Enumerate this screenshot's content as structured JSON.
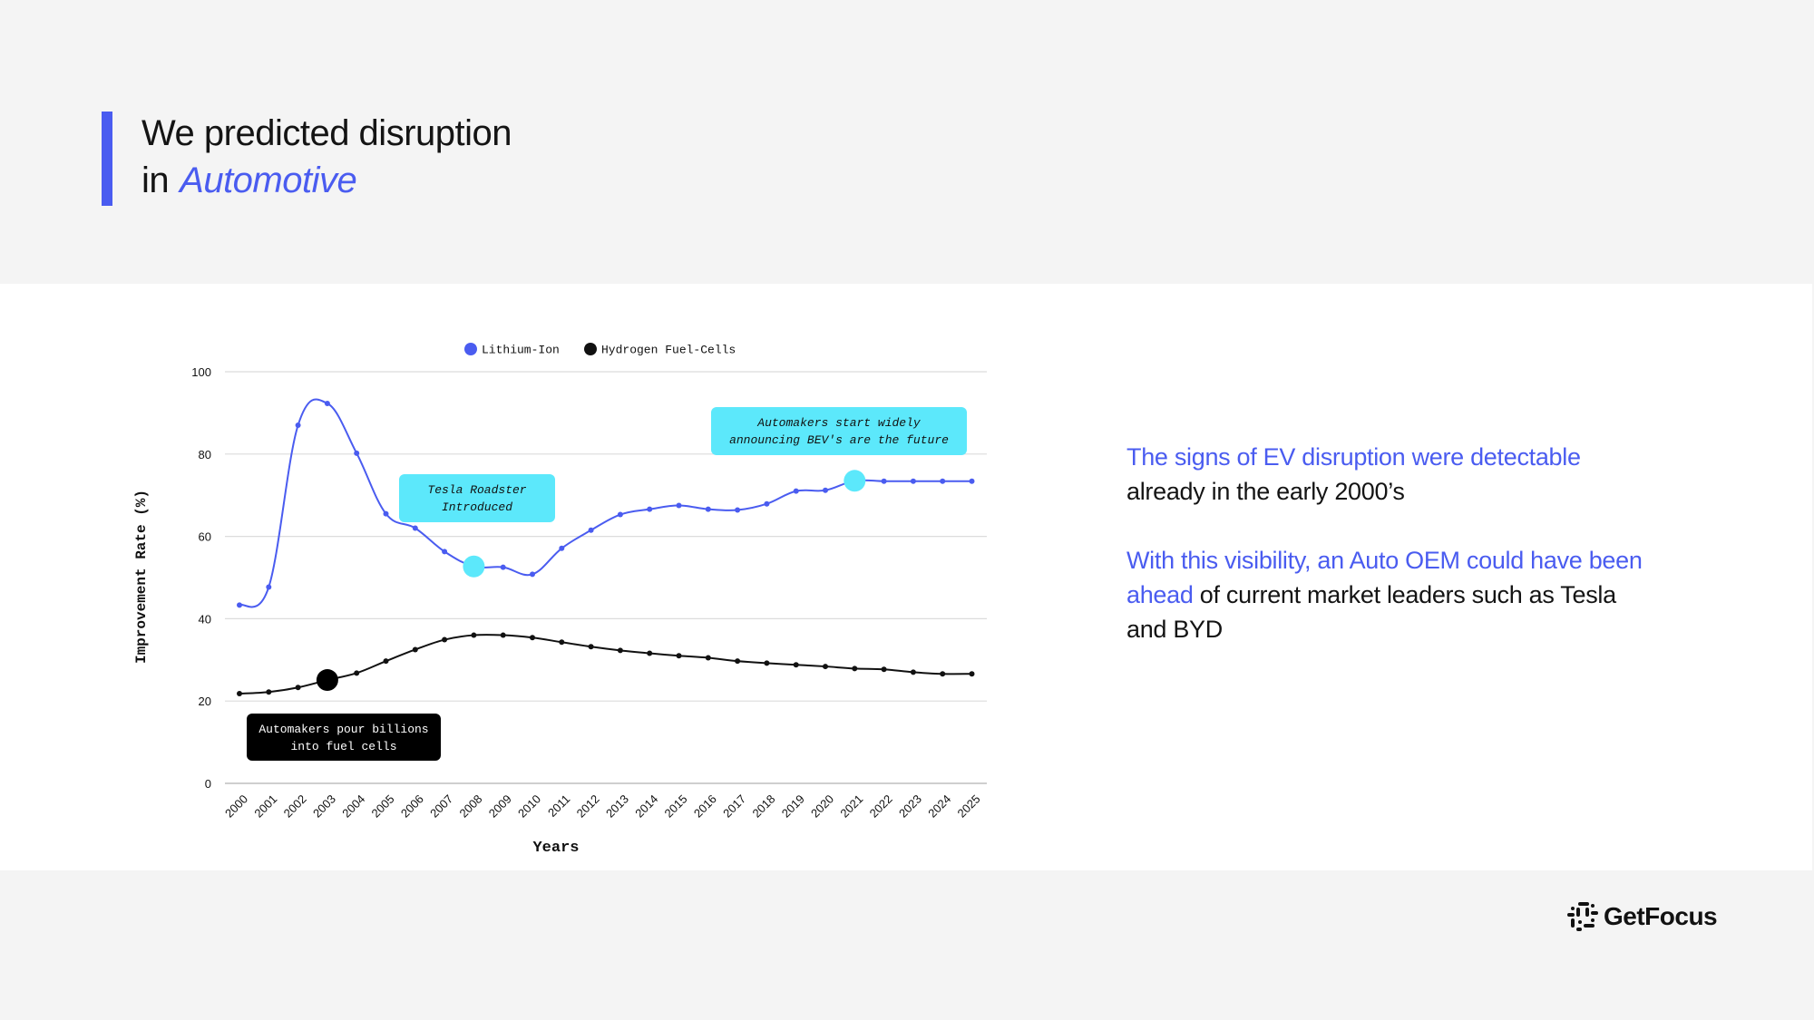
{
  "header": {
    "title_line1": "We predicted disruption",
    "title_line2_prefix": "in",
    "title_line2_accent": "Automotive"
  },
  "colors": {
    "accent": "#4a5cf0",
    "lithium": "#4a5cf0",
    "hydrogen": "#111111",
    "highlight_cyan": "#5ce8fb",
    "page_bg": "#f4f4f4",
    "band_bg": "#ffffff"
  },
  "side_text": {
    "p1_highlight": "The signs of EV disruption were detectable",
    "p1_rest": "already in the early 2000’s",
    "p2_highlight": "With this visibility, an Auto OEM could have been ahead",
    "p2_rest": " of current market leaders such as Tesla and BYD"
  },
  "logo": {
    "text": "GetFocus",
    "icon": "getfocus-logo-icon"
  },
  "chart_data": {
    "type": "line",
    "title": "",
    "xlabel": "Years",
    "ylabel": "Improvement Rate (%)",
    "ylim": [
      0,
      100
    ],
    "yticks": [
      0,
      20,
      40,
      60,
      80,
      100
    ],
    "grid": true,
    "legend_position": "top",
    "x": [
      2000,
      2001,
      2002,
      2003,
      2004,
      2005,
      2006,
      2007,
      2008,
      2009,
      2010,
      2011,
      2012,
      2013,
      2014,
      2015,
      2016,
      2017,
      2018,
      2019,
      2020,
      2021,
      2022,
      2023,
      2024,
      2025
    ],
    "series": [
      {
        "name": "Lithium-Ion",
        "color": "#4a5cf0",
        "values": [
          43.3,
          47.7,
          87.0,
          92.3,
          80.2,
          65.5,
          62.0,
          56.3,
          52.7,
          52.5,
          50.8,
          57.1,
          61.5,
          65.3,
          66.6,
          67.5,
          66.6,
          66.4,
          67.9,
          71.0,
          71.2,
          73.5,
          73.4,
          73.4,
          73.4,
          73.4
        ]
      },
      {
        "name": "Hydrogen Fuel-Cells",
        "color": "#111111",
        "values": [
          21.8,
          22.2,
          23.3,
          25.1,
          26.8,
          29.7,
          32.5,
          34.9,
          36.0,
          36.0,
          35.4,
          34.3,
          33.2,
          32.3,
          31.6,
          31.0,
          30.5,
          29.7,
          29.2,
          28.8,
          28.4,
          27.9,
          27.7,
          27.0,
          26.6,
          26.6
        ]
      }
    ],
    "annotations": [
      {
        "series": "Hydrogen Fuel-Cells",
        "x": 2003,
        "text_lines": [
          "Automakers pour billions",
          "into fuel cells"
        ],
        "style": "dark"
      },
      {
        "series": "Lithium-Ion",
        "x": 2008,
        "text_lines": [
          "Tesla Roadster",
          "Introduced"
        ],
        "style": "cyan"
      },
      {
        "series": "Lithium-Ion",
        "x": 2021,
        "text_lines": [
          "Automakers start widely",
          "announcing BEV's are the future"
        ],
        "style": "cyan"
      }
    ]
  }
}
